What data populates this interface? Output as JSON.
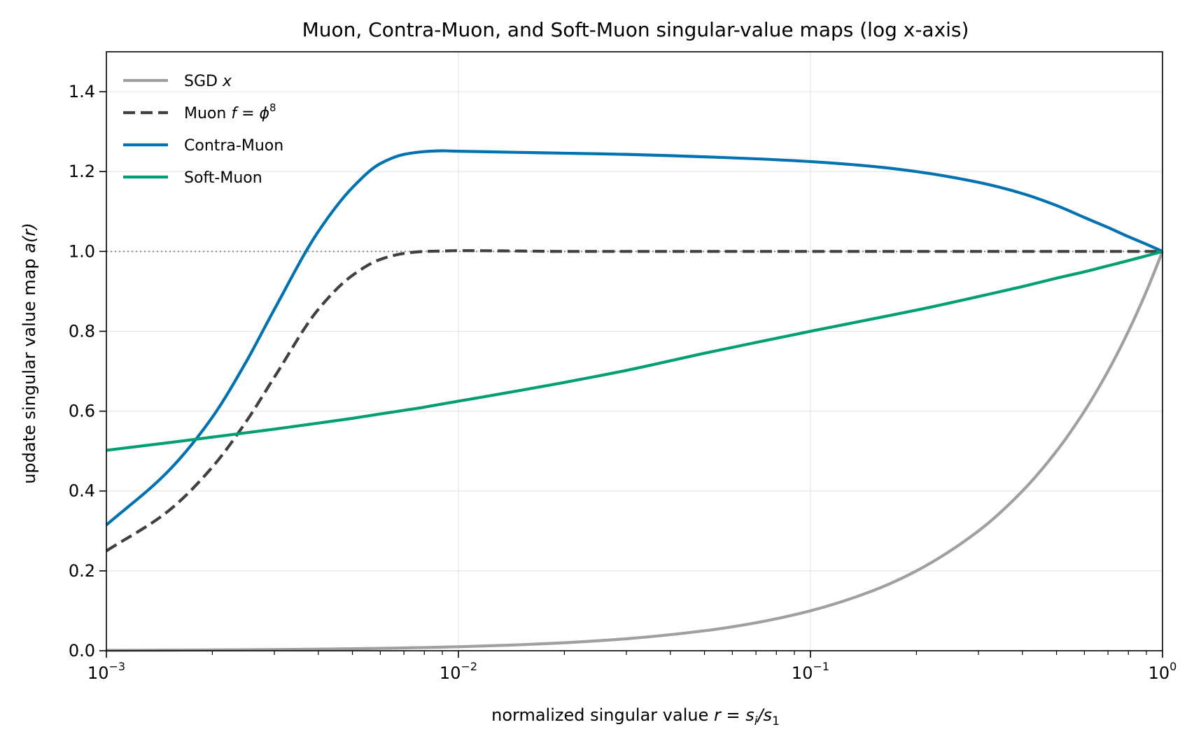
{
  "chart_data": {
    "type": "line",
    "title": "Muon, Contra-Muon, and Soft-Muon singular-value maps (log x-axis)",
    "xlabel": {
      "text": "normalized singular value ",
      "math": "r = s",
      "sub_i": "i",
      "slash": "/s",
      "sub_1": "1"
    },
    "ylabel": {
      "text": "update singular value map ",
      "math": "a(r)"
    },
    "xscale": "log",
    "xlim": [
      0.001,
      1
    ],
    "ylim": [
      0,
      1.5
    ],
    "grid": true,
    "legend_position": "upper left",
    "reference_line": {
      "y": 1.0,
      "style": "dotted",
      "color": "#888888"
    },
    "x_ticks": [
      {
        "value": 0.001,
        "base": "10",
        "exp": "−3"
      },
      {
        "value": 0.01,
        "base": "10",
        "exp": "−2"
      },
      {
        "value": 0.1,
        "base": "10",
        "exp": "−1"
      },
      {
        "value": 1,
        "base": "10",
        "exp": "0"
      }
    ],
    "y_ticks": [
      {
        "value": 0.0,
        "label": "0.0"
      },
      {
        "value": 0.2,
        "label": "0.2"
      },
      {
        "value": 0.4,
        "label": "0.4"
      },
      {
        "value": 0.6,
        "label": "0.6"
      },
      {
        "value": 0.8,
        "label": "0.8"
      },
      {
        "value": 1.0,
        "label": "1.0"
      },
      {
        "value": 1.2,
        "label": "1.2"
      },
      {
        "value": 1.4,
        "label": "1.4"
      }
    ],
    "x": [
      0.001,
      0.0015,
      0.002,
      0.0025,
      0.003,
      0.004,
      0.005,
      0.006,
      0.007,
      0.008,
      0.009,
      0.01,
      0.015,
      0.02,
      0.03,
      0.05,
      0.07,
      0.1,
      0.15,
      0.2,
      0.3,
      0.4,
      0.5,
      0.6,
      0.7,
      0.8,
      0.9,
      1.0
    ],
    "series": [
      {
        "name": "SGD ",
        "name_math": "x",
        "color": "#a0a0a0",
        "style": "solid",
        "values": [
          0.001,
          0.0015,
          0.002,
          0.0025,
          0.003,
          0.004,
          0.005,
          0.006,
          0.007,
          0.008,
          0.009,
          0.01,
          0.015,
          0.02,
          0.03,
          0.05,
          0.07,
          0.1,
          0.15,
          0.2,
          0.3,
          0.4,
          0.5,
          0.6,
          0.7,
          0.8,
          0.9,
          1.0
        ]
      },
      {
        "name": "Muon ",
        "name_math": "f = ϕ",
        "name_sup": "8",
        "color": "#404040",
        "style": "dashed",
        "values": [
          0.25,
          0.35,
          0.46,
          0.575,
          0.685,
          0.855,
          0.94,
          0.98,
          0.995,
          1.0,
          1.001,
          1.002,
          1.001,
          1.0,
          1.0,
          1.0,
          1.0,
          1.0,
          1.0,
          1.0,
          1.0,
          1.0,
          1.0,
          1.0,
          1.0,
          1.0,
          1.0,
          1.0
        ]
      },
      {
        "name": "Contra-Muon",
        "color": "#0072b2",
        "style": "solid",
        "values": [
          0.315,
          0.45,
          0.585,
          0.725,
          0.855,
          1.05,
          1.16,
          1.22,
          1.243,
          1.25,
          1.252,
          1.251,
          1.248,
          1.246,
          1.243,
          1.237,
          1.232,
          1.225,
          1.213,
          1.2,
          1.173,
          1.145,
          1.115,
          1.085,
          1.06,
          1.037,
          1.018,
          1.0
        ]
      },
      {
        "name": "Soft-Muon",
        "color": "#009e73",
        "style": "solid",
        "values": [
          0.502,
          0.521,
          0.535,
          0.546,
          0.555,
          0.57,
          0.582,
          0.593,
          0.602,
          0.61,
          0.618,
          0.625,
          0.652,
          0.672,
          0.702,
          0.745,
          0.772,
          0.8,
          0.831,
          0.853,
          0.887,
          0.912,
          0.933,
          0.949,
          0.964,
          0.977,
          0.989,
          1.0
        ]
      }
    ]
  }
}
